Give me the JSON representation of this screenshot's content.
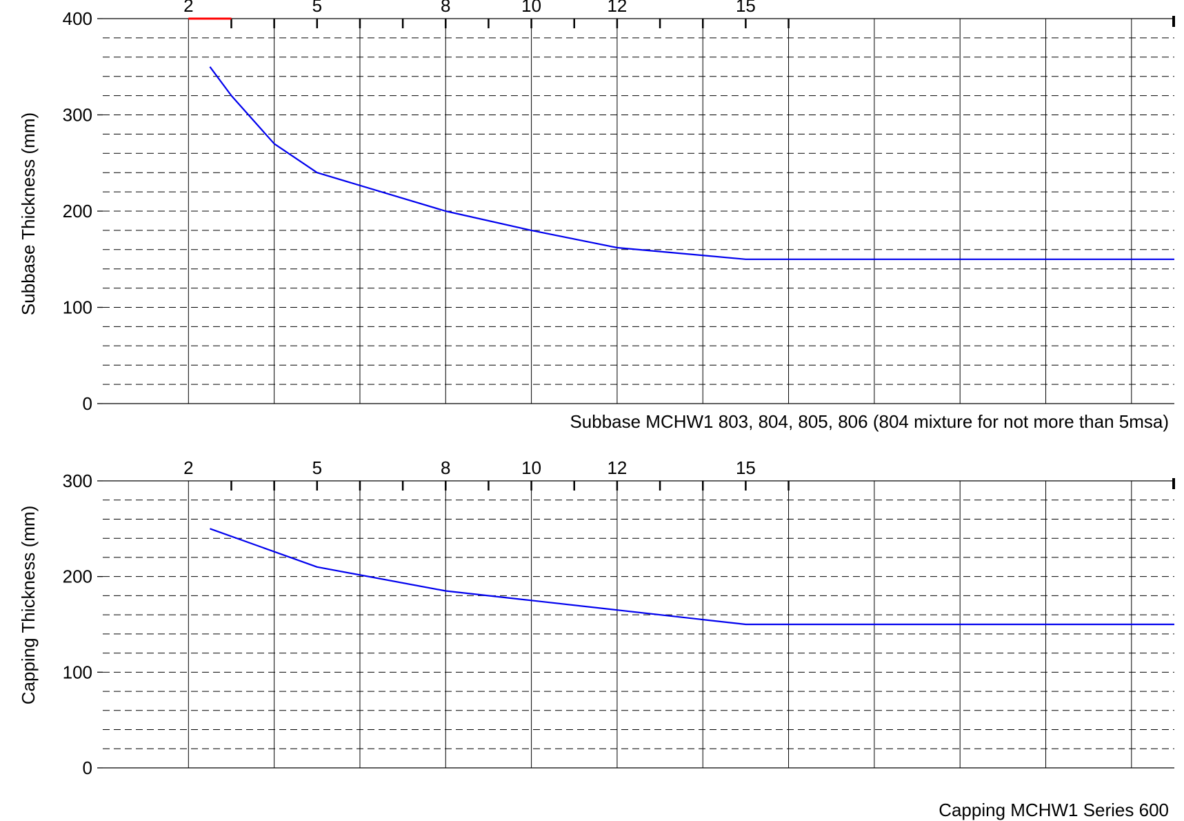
{
  "chart_data": [
    {
      "type": "line",
      "title": "",
      "xlabel": "",
      "ylabel": "Subbase Thickness (mm)",
      "caption": "Subbase MCHW1 803, 804, 805, 806 (804 mixture for not more than 5msa)",
      "ylim": [
        0,
        400
      ],
      "y_ticks": [
        0,
        100,
        200,
        300,
        400
      ],
      "y_tick_labels": [
        "0",
        "100",
        "200",
        "300",
        "400"
      ],
      "x_top_ticks": [
        2,
        5,
        8,
        10,
        12,
        15
      ],
      "x_top_tick_labels": [
        "2",
        "5",
        "8",
        "10",
        "12",
        "15"
      ],
      "grid": true,
      "series": [
        {
          "color": "#0000ee",
          "x": [
            2.5,
            3,
            4,
            5,
            8,
            10,
            12,
            15,
            25
          ],
          "y": [
            350,
            320,
            270,
            240,
            200,
            180,
            162,
            150,
            150
          ]
        }
      ],
      "highlight": {
        "color": "#ff0000",
        "x_range": [
          2,
          3
        ]
      }
    },
    {
      "type": "line",
      "title": "",
      "xlabel": "",
      "ylabel": "Capping Thickness (mm)",
      "caption": "Capping MCHW1 Series 600",
      "ylim": [
        0,
        300
      ],
      "y_ticks": [
        0,
        100,
        200,
        300
      ],
      "y_tick_labels": [
        "0",
        "100",
        "200",
        "300"
      ],
      "x_top_ticks": [
        2,
        5,
        8,
        10,
        12,
        15
      ],
      "x_top_tick_labels": [
        "2",
        "5",
        "8",
        "10",
        "12",
        "15"
      ],
      "grid": true,
      "series": [
        {
          "color": "#0000ee",
          "x": [
            2.5,
            5,
            8,
            10,
            12,
            15,
            25
          ],
          "y": [
            250,
            210,
            185,
            175,
            165,
            150,
            150
          ]
        }
      ]
    }
  ]
}
